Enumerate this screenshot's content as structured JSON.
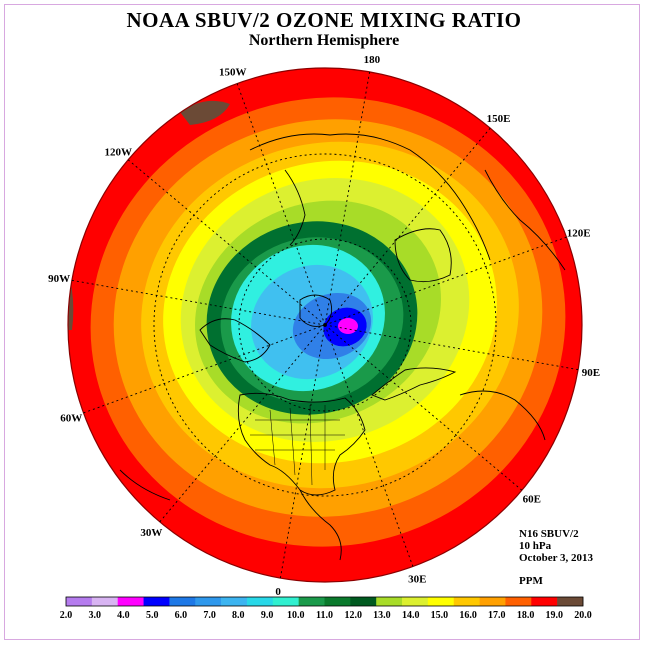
{
  "title": "NOAA SBUV/2 OZONE MIXING RATIO",
  "subtitle": "Northern Hemisphere",
  "info": {
    "satellite": "N16 SBUV/2",
    "level": "10 hPa",
    "date": "October 3, 2013",
    "units": "PPM"
  },
  "longitude_labels": [
    {
      "text": "90E",
      "lon": 90
    },
    {
      "text": "60E",
      "lon": 60
    },
    {
      "text": "30E",
      "lon": 30
    },
    {
      "text": "0",
      "lon": 0
    },
    {
      "text": "30W",
      "lon": -30
    },
    {
      "text": "60W",
      "lon": -60
    },
    {
      "text": "90W",
      "lon": -90
    },
    {
      "text": "120W",
      "lon": -120
    },
    {
      "text": "150W",
      "lon": -150
    },
    {
      "text": "180",
      "lon": 180
    },
    {
      "text": "150E",
      "lon": 150
    },
    {
      "text": "120E",
      "lon": 120
    }
  ],
  "colorbar": {
    "labels": [
      "2.0",
      "3.0",
      "4.0",
      "5.0",
      "6.0",
      "7.0",
      "8.0",
      "9.0",
      "10.0",
      "11.0",
      "12.0",
      "13.0",
      "14.0",
      "15.0",
      "16.0",
      "17.0",
      "18.0",
      "19.0",
      "20.0"
    ],
    "colors": [
      "#b57cee",
      "#d8b4f2",
      "#ff00ff",
      "#0000ff",
      "#1e78e6",
      "#2e98ec",
      "#3cb4f0",
      "#28d8e8",
      "#30f0d0",
      "#1a9a4a",
      "#0a7a2c",
      "#005a20",
      "#a8dc28",
      "#dcf030",
      "#ffff00",
      "#ffc800",
      "#ffa000",
      "#ff6000",
      "#ff0000",
      "#6b4a36"
    ]
  },
  "map_fill_colors": {
    "magenta": "#ff00ff",
    "blue": "#0000ff",
    "medium_blue": "#3080e8",
    "light_blue": "#40c0f0",
    "cyan": "#30f0e0",
    "green": "#1a9a4a",
    "dark_green": "#007030",
    "light_green": "#a8dc28",
    "yellow_green": "#dcf030",
    "yellow": "#ffff00",
    "gold": "#ffc800",
    "orange": "#ffa000",
    "dark_orange": "#ff6000",
    "red": "#ff0000",
    "brown": "#6b4a36"
  }
}
